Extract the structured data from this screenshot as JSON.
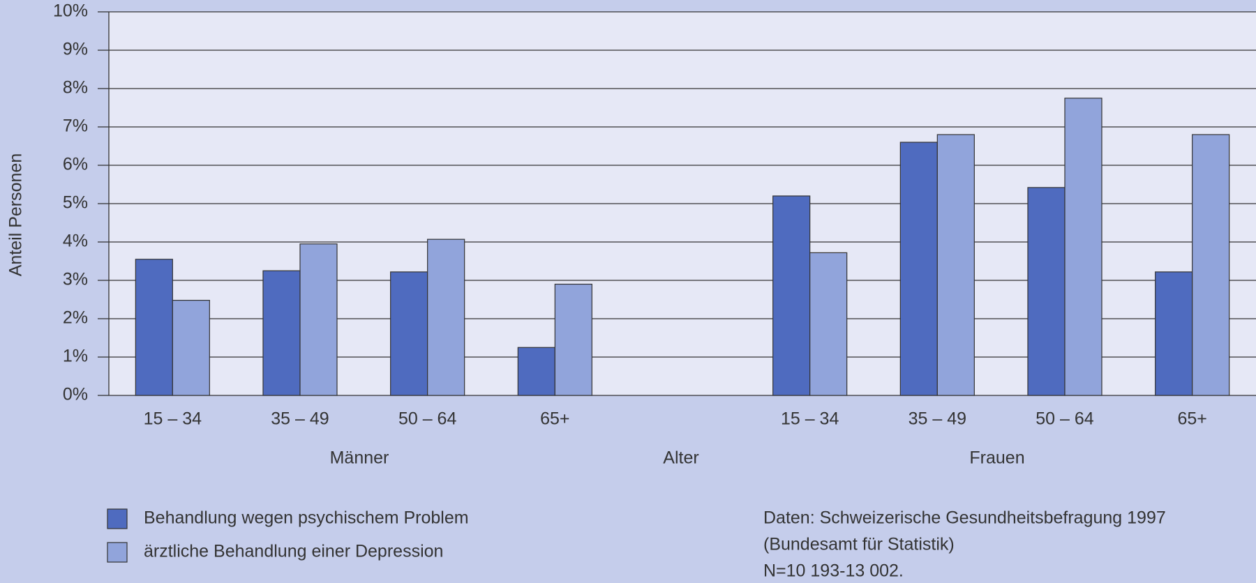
{
  "chart_data": {
    "type": "bar",
    "y_label": "Anteil Personen",
    "categories": [
      "15 – 34",
      "35 – 49",
      "50 – 64",
      "65+",
      null,
      "15 – 34",
      "35 – 49",
      "50 – 64",
      "65+"
    ],
    "group_labels": [
      "Männer",
      "Alter",
      "Frauen"
    ],
    "series": [
      {
        "name": "Behandlung wegen psychischem Problem",
        "color": "#4f6bbf",
        "values": [
          3.55,
          3.25,
          3.22,
          1.25,
          null,
          5.2,
          6.6,
          5.42,
          3.22
        ]
      },
      {
        "name": "ärztliche Behandlung einer Depression",
        "color": "#91a4db",
        "values": [
          2.48,
          3.95,
          4.07,
          2.9,
          null,
          3.72,
          6.8,
          7.75,
          6.8
        ]
      }
    ],
    "ylim": [
      0,
      10
    ],
    "yticks": [
      {
        "value": 0,
        "label": "0%"
      },
      {
        "value": 1,
        "label": "1%"
      },
      {
        "value": 2,
        "label": "2%"
      },
      {
        "value": 3,
        "label": "3%"
      },
      {
        "value": 4,
        "label": "4%"
      },
      {
        "value": 5,
        "label": "5%"
      },
      {
        "value": 6,
        "label": "6%"
      },
      {
        "value": 7,
        "label": "7%"
      },
      {
        "value": 8,
        "label": "8%"
      },
      {
        "value": 9,
        "label": "9%"
      },
      {
        "value": 10,
        "label": "10%"
      }
    ],
    "grid": true,
    "note": [
      "Daten: Schweizerische Gesundheitsbefragung 1997",
      "(Bundesamt für Statistik)",
      "N=10 193-13 002."
    ]
  }
}
